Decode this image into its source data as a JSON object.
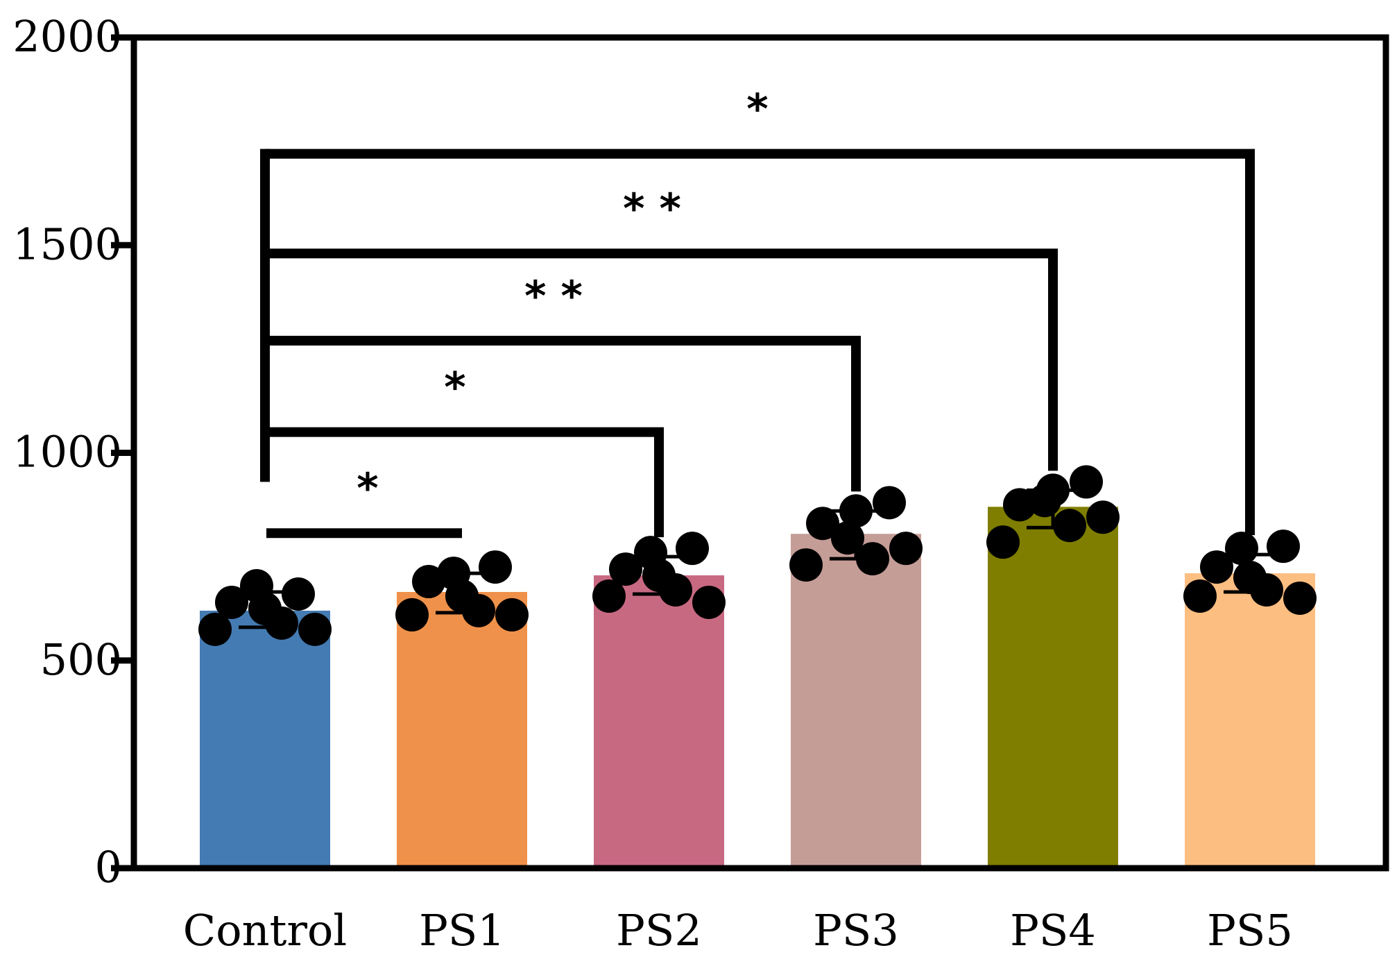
{
  "chart_data": {
    "type": "bar",
    "title": "",
    "xlabel": "",
    "ylabel": "",
    "ylim": [
      0,
      2000
    ],
    "yticks": [
      0,
      500,
      1000,
      1500,
      2000
    ],
    "ytick_labels": [
      "0",
      "500",
      "1000",
      "1500",
      "2000"
    ],
    "categories": [
      "Control",
      "PS1",
      "PS2",
      "PS3",
      "PS4",
      "PS5"
    ],
    "values": [
      620,
      665,
      705,
      805,
      870,
      710
    ],
    "error": [
      [
        580,
        665
      ],
      [
        615,
        710
      ],
      [
        660,
        750
      ],
      [
        745,
        860
      ],
      [
        820,
        910
      ],
      [
        665,
        755
      ]
    ],
    "colors": [
      "#447BB3",
      "#EF914A",
      "#C86982",
      "#C59D97",
      "#7F7E00",
      "#FDBE82"
    ],
    "points": [
      [
        575,
        640,
        680,
        590,
        625,
        660,
        575
      ],
      [
        610,
        690,
        710,
        620,
        655,
        725,
        610
      ],
      [
        655,
        720,
        760,
        670,
        705,
        770,
        640
      ],
      [
        730,
        830,
        795,
        745,
        860,
        880,
        770
      ],
      [
        785,
        875,
        885,
        825,
        910,
        930,
        845
      ],
      [
        655,
        725,
        770,
        670,
        700,
        775,
        650
      ]
    ],
    "comparisons": [
      {
        "from": "Control",
        "to": "PS1",
        "label": "*",
        "bar_y": 820
      },
      {
        "from": "Control",
        "to": "PS2",
        "label": "*",
        "bar_y": 1050
      },
      {
        "from": "Control",
        "to": "PS3",
        "label": "* *",
        "bar_y": 1270
      },
      {
        "from": "Control",
        "to": "PS4",
        "label": "* *",
        "bar_y": 1480
      },
      {
        "from": "Control",
        "to": "PS5",
        "label": "*",
        "bar_y": 1720
      }
    ]
  }
}
